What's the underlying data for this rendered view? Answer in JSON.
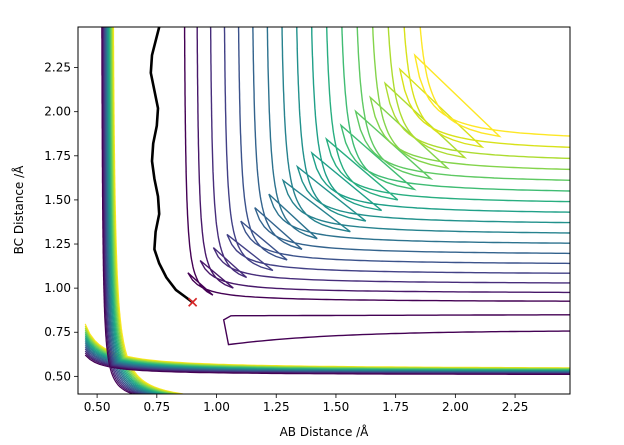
{
  "chart_data": {
    "type": "contour",
    "xlabel": "AB Distance /Å",
    "ylabel": "BC Distance /Å",
    "xlim": [
      0.42,
      2.48
    ],
    "ylim": [
      0.4,
      2.48
    ],
    "x_ticks": [
      "0.50",
      "0.75",
      "1.00",
      "1.25",
      "1.50",
      "1.75",
      "2.00",
      "2.25"
    ],
    "y_ticks": [
      "0.50",
      "0.75",
      "1.00",
      "1.25",
      "1.50",
      "1.75",
      "2.00",
      "2.25"
    ],
    "x_tick_values": [
      0.5,
      0.75,
      1.0,
      1.25,
      1.5,
      1.75,
      2.0,
      2.25
    ],
    "y_tick_values": [
      0.5,
      0.75,
      1.0,
      1.25,
      1.5,
      1.75,
      2.0,
      2.25
    ],
    "colormap": "viridis",
    "contour_levels": [
      {
        "level_index": 0,
        "color": "#440154"
      },
      {
        "level_index": 1,
        "color": "#48186a"
      },
      {
        "level_index": 2,
        "color": "#472d7b"
      },
      {
        "level_index": 3,
        "color": "#424086"
      },
      {
        "level_index": 4,
        "color": "#3b528b"
      },
      {
        "level_index": 5,
        "color": "#33638d"
      },
      {
        "level_index": 6,
        "color": "#2c728e"
      },
      {
        "level_index": 7,
        "color": "#26828e"
      },
      {
        "level_index": 8,
        "color": "#21918c"
      },
      {
        "level_index": 9,
        "color": "#1fa088"
      },
      {
        "level_index": 10,
        "color": "#28ae80"
      },
      {
        "level_index": 11,
        "color": "#3fbc73"
      },
      {
        "level_index": 12,
        "color": "#5ec962"
      },
      {
        "level_index": 13,
        "color": "#84d44b"
      },
      {
        "level_index": 14,
        "color": "#addc30"
      },
      {
        "level_index": 15,
        "color": "#d8e219"
      },
      {
        "level_index": 16,
        "color": "#fde725"
      }
    ],
    "trajectory": {
      "color": "#000000",
      "points": [
        [
          0.9,
          0.92
        ],
        [
          0.87,
          0.95
        ],
        [
          0.83,
          0.99
        ],
        [
          0.79,
          1.06
        ],
        [
          0.76,
          1.14
        ],
        [
          0.74,
          1.22
        ],
        [
          0.745,
          1.32
        ],
        [
          0.76,
          1.42
        ],
        [
          0.755,
          1.52
        ],
        [
          0.74,
          1.62
        ],
        [
          0.73,
          1.72
        ],
        [
          0.735,
          1.82
        ],
        [
          0.75,
          1.92
        ],
        [
          0.755,
          2.02
        ],
        [
          0.74,
          2.12
        ],
        [
          0.725,
          2.22
        ],
        [
          0.73,
          2.32
        ],
        [
          0.745,
          2.4
        ],
        [
          0.76,
          2.48
        ]
      ]
    },
    "start_marker": {
      "x": 0.9,
      "y": 0.92,
      "symbol": "x",
      "color": "#d62728"
    }
  }
}
